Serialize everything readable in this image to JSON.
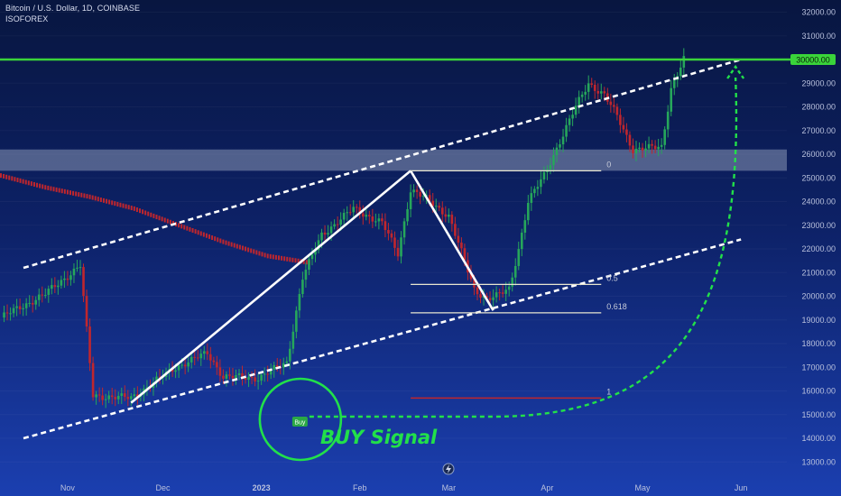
{
  "header": {
    "title": "Bitcoin / U.S. Dollar, 1D, COINBASE",
    "author": "ISOFOREX"
  },
  "colors": {
    "background_top": "#081640",
    "background_bottom": "#1b3fb0",
    "candle_up": "#26a65b",
    "candle_down": "#c0262d",
    "moving_average": "#c0262d",
    "channel_line": "#ffffff",
    "resistance_line": "#3ad43a",
    "signal": "#22e04a",
    "fib_line": "#e8e6d0",
    "fib_target_line": "#c0262d",
    "zone": "#b9c3d6"
  },
  "chart_data": {
    "type": "candlestick",
    "title": "Bitcoin / U.S. Dollar, 1D, COINBASE",
    "xlabel": "",
    "ylabel": "",
    "ylim": [
      12500,
      32600
    ],
    "y_ticks": [
      "32000.00",
      "31000.00",
      "30000.00",
      "29000.00",
      "28000.00",
      "27000.00",
      "26000.00",
      "25000.00",
      "24000.00",
      "23000.00",
      "22000.00",
      "21000.00",
      "20000.00",
      "19000.00",
      "18000.00",
      "17000.00",
      "16000.00",
      "15000.00",
      "14000.00",
      "13000.00"
    ],
    "x_ticks": [
      "Nov",
      "Dec",
      "2023",
      "Feb",
      "Mar",
      "Apr",
      "May",
      "Jun"
    ],
    "price_label": "30000.00",
    "price_waypoints": [
      [
        "2022-10-11",
        19100
      ],
      [
        "2022-10-25",
        20100
      ],
      [
        "2022-11-05",
        21300
      ],
      [
        "2022-11-09",
        15800
      ],
      [
        "2022-11-21",
        15700
      ],
      [
        "2022-12-05",
        17000
      ],
      [
        "2022-12-15",
        17600
      ],
      [
        "2022-12-20",
        16600
      ],
      [
        "2022-12-31",
        16550
      ],
      [
        "2023-01-09",
        17200
      ],
      [
        "2023-01-14",
        20800
      ],
      [
        "2023-01-20",
        22600
      ],
      [
        "2023-01-30",
        23700
      ],
      [
        "2023-02-08",
        23100
      ],
      [
        "2023-02-13",
        21800
      ],
      [
        "2023-02-17",
        24500
      ],
      [
        "2023-02-22",
        24100
      ],
      [
        "2023-03-01",
        23400
      ],
      [
        "2023-03-09",
        20300
      ],
      [
        "2023-03-13",
        19900
      ],
      [
        "2023-03-16",
        20000
      ],
      [
        "2023-03-20",
        20300
      ],
      [
        "2023-03-23",
        22000
      ],
      [
        "2023-03-26",
        24000
      ],
      [
        "2023-03-31",
        25100
      ],
      [
        "2023-04-10",
        28000
      ],
      [
        "2023-04-14",
        29000
      ],
      [
        "2023-04-19",
        28500
      ],
      [
        "2023-04-23",
        27600
      ],
      [
        "2023-04-28",
        26200
      ],
      [
        "2023-05-07",
        26300
      ],
      [
        "2023-05-10",
        28800
      ],
      [
        "2023-05-14",
        30000
      ]
    ],
    "moving_average": [
      [
        "2022-10-11",
        25100
      ],
      [
        "2022-10-25",
        24600
      ],
      [
        "2022-11-08",
        24200
      ],
      [
        "2022-11-22",
        23700
      ],
      [
        "2022-12-06",
        23000
      ],
      [
        "2022-12-20",
        22300
      ],
      [
        "2023-01-03",
        21700
      ],
      [
        "2023-01-17",
        21400
      ]
    ],
    "annotations": {
      "resistance_level": 30000,
      "zone": [
        25300,
        26200
      ],
      "fib_levels": [
        {
          "label": "0",
          "price": 25300,
          "from": "2023-02-17",
          "to": "2023-04-18"
        },
        {
          "label": "0.5",
          "price": 20500,
          "from": "2023-02-17",
          "to": "2023-04-18"
        },
        {
          "label": "0.618",
          "price": 19300,
          "from": "2023-02-17",
          "to": "2023-04-18"
        },
        {
          "label": "1",
          "price": 15700,
          "from": "2023-02-17",
          "to": "2023-04-18"
        }
      ],
      "trend_lines": [
        {
          "from": [
            "2022-11-21",
            15500
          ],
          "to": [
            "2023-02-17",
            25300
          ]
        },
        {
          "from": [
            "2023-02-17",
            25300
          ],
          "to": [
            "2023-03-15",
            19400
          ]
        }
      ],
      "channel_upper": {
        "from": [
          "2022-10-11",
          21200
        ],
        "to": [
          "2023-06-01",
          30000
        ]
      },
      "channel_lower": {
        "from": [
          "2022-10-11",
          14000
        ],
        "to": [
          "2023-06-01",
          22400
        ]
      },
      "buy_marker": {
        "label": "Buy",
        "date": "2023-01-13",
        "price": 14800
      },
      "buy_signal_text": "BUY Signal",
      "projection_target": {
        "date": "2023-05-30",
        "price": 30000
      }
    }
  }
}
